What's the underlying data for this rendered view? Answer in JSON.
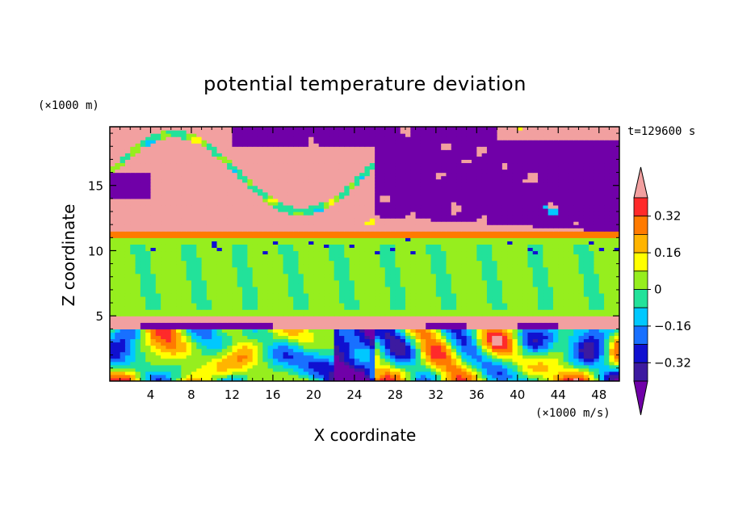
{
  "chart_data": {
    "type": "heatmap",
    "title": "potential temperature deviation",
    "xlabel": "X coordinate",
    "ylabel": "Z coordinate",
    "x_unit": "(×1000 m/s)",
    "y_unit": "(×1000 m)",
    "time_label": "t=129600 s",
    "xlim": [
      0,
      50
    ],
    "ylim": [
      0,
      19.5
    ],
    "x_ticks": [
      4,
      8,
      12,
      16,
      20,
      24,
      28,
      32,
      36,
      40,
      44,
      48
    ],
    "y_ticks": [
      5,
      10,
      15
    ],
    "colorbar": {
      "levels": [
        -0.4,
        -0.32,
        -0.24,
        -0.16,
        -0.08,
        0,
        0.08,
        0.16,
        0.24,
        0.32,
        0.4
      ],
      "colors": [
        "#7000a8",
        "#3c1aa0",
        "#1010d0",
        "#1870ff",
        "#00c8ff",
        "#22e29a",
        "#96ee1e",
        "#ffff00",
        "#ffb400",
        "#ff7a00",
        "#ff2a2a",
        "#f2a0a0"
      ],
      "labels": [
        "0.32",
        "0.16",
        "0",
        "-0.16",
        "-0.32"
      ]
    },
    "layers": [
      {
        "z": [
          0,
          4
        ],
        "description_value": "mixed -0.4 to 0.4"
      },
      {
        "z": [
          4,
          5
        ],
        "value": 0.4
      },
      {
        "z": [
          5,
          11
        ],
        "value": 0.0
      },
      {
        "z": [
          11,
          11.5
        ],
        "value": 0.3
      },
      {
        "z": [
          11.5,
          19.5
        ],
        "value": "mixed 0.4 and -0.4"
      }
    ]
  },
  "labels": {
    "title": "potential temperature deviation",
    "xlabel": "X coordinate",
    "ylabel": "Z coordinate",
    "x_unit": "(×1000 m/s)",
    "y_unit": "(×1000 m)",
    "time": "t=129600 s"
  }
}
